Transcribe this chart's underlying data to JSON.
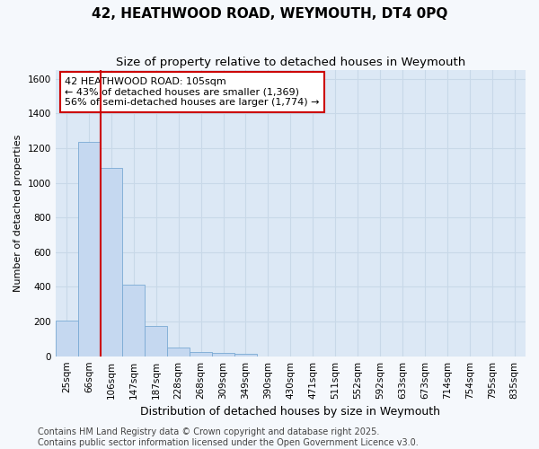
{
  "title_line1": "42, HEATHWOOD ROAD, WEYMOUTH, DT4 0PQ",
  "title_line2": "Size of property relative to detached houses in Weymouth",
  "xlabel": "Distribution of detached houses by size in Weymouth",
  "ylabel": "Number of detached properties",
  "categories": [
    "25sqm",
    "66sqm",
    "106sqm",
    "147sqm",
    "187sqm",
    "228sqm",
    "268sqm",
    "309sqm",
    "349sqm",
    "390sqm",
    "430sqm",
    "471sqm",
    "511sqm",
    "552sqm",
    "592sqm",
    "633sqm",
    "673sqm",
    "714sqm",
    "754sqm",
    "795sqm",
    "835sqm"
  ],
  "values": [
    205,
    1235,
    1085,
    415,
    175,
    50,
    25,
    20,
    15,
    0,
    0,
    0,
    0,
    0,
    0,
    0,
    0,
    0,
    0,
    0,
    0
  ],
  "bar_color": "#c5d8f0",
  "bar_edge_color": "#7aaad4",
  "annotation_text": "42 HEATHWOOD ROAD: 105sqm\n← 43% of detached houses are smaller (1,369)\n56% of semi-detached houses are larger (1,774) →",
  "annotation_box_color": "#ffffff",
  "annotation_box_edge": "#cc0000",
  "vline_color": "#cc0000",
  "vline_bar_index": 2,
  "ylim": [
    0,
    1650
  ],
  "yticks": [
    0,
    200,
    400,
    600,
    800,
    1000,
    1200,
    1400,
    1600
  ],
  "grid_color": "#c8d8e8",
  "plot_bg_color": "#dce8f5",
  "fig_bg_color": "#f5f8fc",
  "footer_text": "Contains HM Land Registry data © Crown copyright and database right 2025.\nContains public sector information licensed under the Open Government Licence v3.0.",
  "title_fontsize": 11,
  "subtitle_fontsize": 9.5,
  "xlabel_fontsize": 9,
  "ylabel_fontsize": 8,
  "tick_fontsize": 7.5,
  "annotation_fontsize": 8,
  "footer_fontsize": 7
}
